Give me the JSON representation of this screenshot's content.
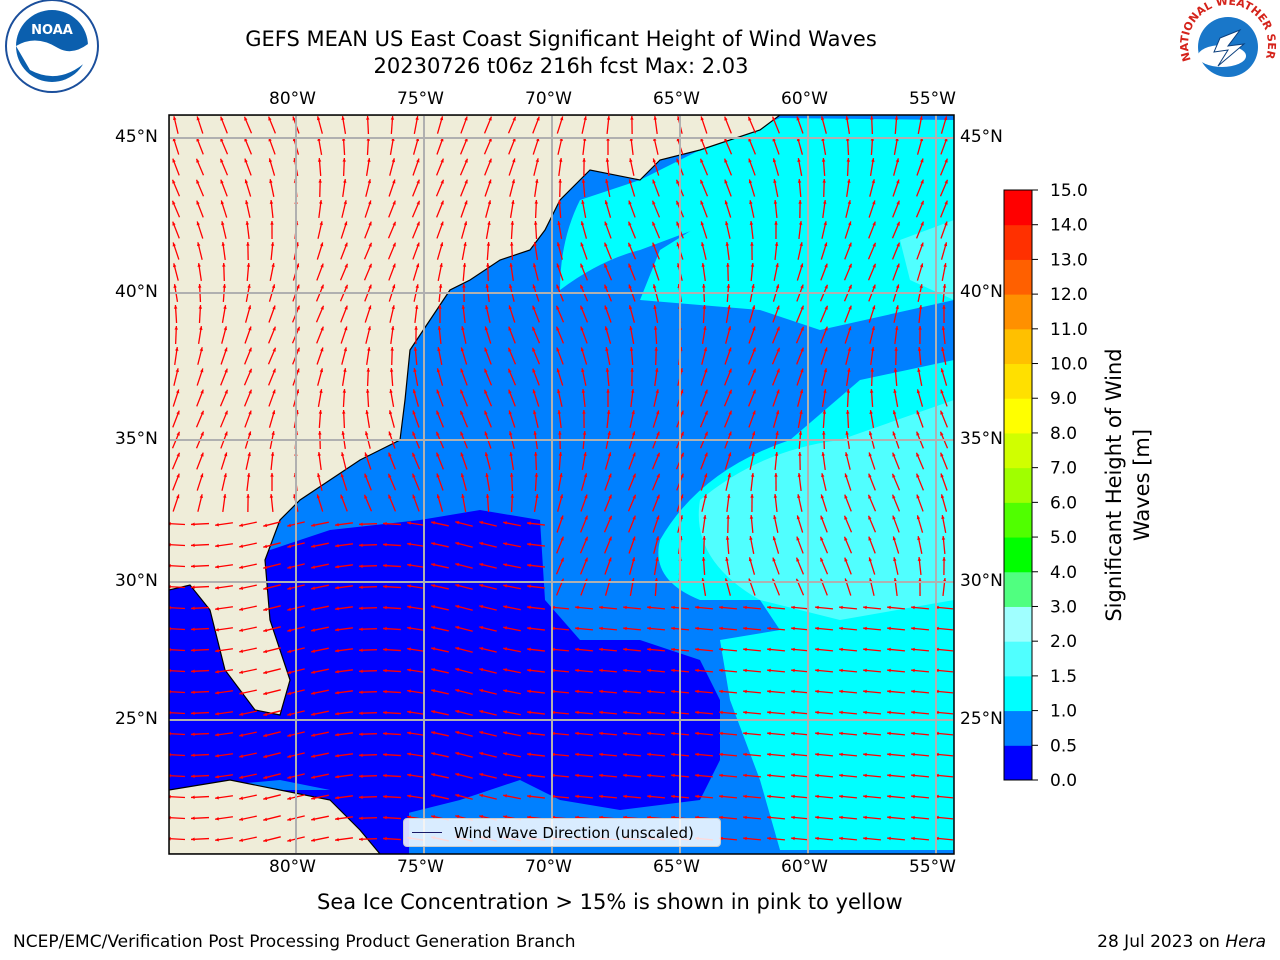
{
  "title_line1": "GEFS MEAN US East Coast Significant Height of Wind Waves",
  "title_line2": "20230726 t06z 216h fcst   Max: 2.03",
  "logos": {
    "left": "NOAA",
    "right": "NATIONAL WEATHER SERVICE"
  },
  "map": {
    "lon_labels": [
      "80°W",
      "75°W",
      "70°W",
      "65°W",
      "60°W",
      "55°W"
    ],
    "lat_labels": [
      "45°N",
      "40°N",
      "35°N",
      "30°N",
      "25°N"
    ],
    "land_color": "#efedd9",
    "arrow_color": "#ff0000",
    "legend_label": "Wind Wave Direction (unscaled)"
  },
  "colorbar": {
    "title": "Significant Height of Wind Waves [m]",
    "ticks": [
      "0.0",
      "0.5",
      "1.0",
      "1.5",
      "2.0",
      "3.0",
      "4.0",
      "5.0",
      "6.0",
      "7.0",
      "8.0",
      "9.0",
      "10.0",
      "11.0",
      "12.0",
      "13.0",
      "14.0",
      "15.0"
    ],
    "colors": [
      "#0000ff",
      "#0080ff",
      "#00ffff",
      "#50ffff",
      "#a0ffff",
      "#50ff80",
      "#00ff00",
      "#50ff00",
      "#a0ff00",
      "#d0ff00",
      "#ffff00",
      "#ffe000",
      "#ffc000",
      "#ff9000",
      "#ff6000",
      "#ff3000",
      "#ff0000"
    ]
  },
  "subtitle": "Sea Ice Concentration > 15% is shown in pink to yellow",
  "footer_left": "NCEP/EMC/Verification Post Processing Product Generation Branch",
  "footer_date": "28 Jul 2023 on ",
  "footer_machine": "Hera"
}
